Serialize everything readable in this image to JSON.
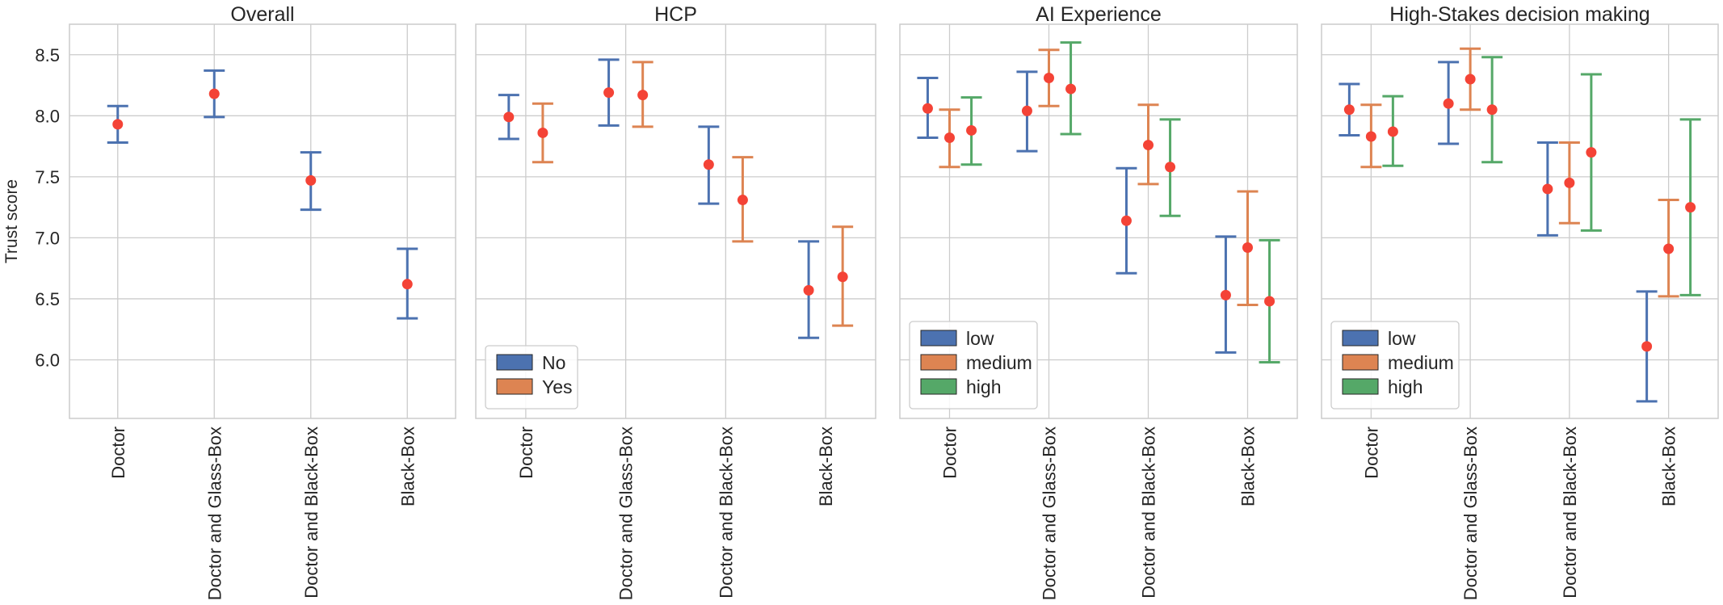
{
  "chart_data": [
    {
      "type": "errorbar",
      "title": "Overall",
      "ylabel": "Trust score",
      "ylim": [
        5.52,
        8.75
      ],
      "yticks": [
        "6.0",
        "6.5",
        "7.0",
        "7.5",
        "8.0",
        "8.5"
      ],
      "ytick_values": [
        6.0,
        6.5,
        7.0,
        7.5,
        8.0,
        8.5
      ],
      "categories": [
        "Doctor",
        "Doctor and Glass-Box",
        "Doctor and Black-Box",
        "Black-Box"
      ],
      "grid": true,
      "legend": null,
      "series": [
        {
          "color": "#4c72b0",
          "mean": [
            7.93,
            8.18,
            7.47,
            6.62
          ],
          "lower": [
            7.78,
            7.99,
            7.23,
            6.34
          ],
          "upper": [
            8.08,
            8.37,
            7.7,
            6.91
          ]
        }
      ]
    },
    {
      "type": "errorbar",
      "title": "HCP",
      "ylabel": "",
      "ylim": [
        5.52,
        8.75
      ],
      "categories": [
        "Doctor",
        "Doctor and Glass-Box",
        "Doctor and Black-Box",
        "Black-Box"
      ],
      "grid": true,
      "legend": "lower-left",
      "series": [
        {
          "name": "No",
          "color": "#4c72b0",
          "mean": [
            7.99,
            8.19,
            7.6,
            6.57
          ],
          "lower": [
            7.81,
            7.92,
            7.28,
            6.18
          ],
          "upper": [
            8.17,
            8.46,
            7.91,
            6.97
          ]
        },
        {
          "name": "Yes",
          "color": "#dd8452",
          "mean": [
            7.86,
            8.17,
            7.31,
            6.68
          ],
          "lower": [
            7.62,
            7.91,
            6.97,
            6.28
          ],
          "upper": [
            8.1,
            8.44,
            7.66,
            7.09
          ]
        }
      ]
    },
    {
      "type": "errorbar",
      "title": "AI Experience",
      "ylabel": "",
      "ylim": [
        5.52,
        8.75
      ],
      "categories": [
        "Doctor",
        "Doctor and Glass-Box",
        "Doctor and Black-Box",
        "Black-Box"
      ],
      "grid": true,
      "legend": "lower-left",
      "series": [
        {
          "name": "low",
          "color": "#4c72b0",
          "mean": [
            8.06,
            8.04,
            7.14,
            6.53
          ],
          "lower": [
            7.82,
            7.71,
            6.71,
            6.06
          ],
          "upper": [
            8.31,
            8.36,
            7.57,
            7.01
          ]
        },
        {
          "name": "medium",
          "color": "#dd8452",
          "mean": [
            7.82,
            8.31,
            7.76,
            6.92
          ],
          "lower": [
            7.58,
            8.08,
            7.44,
            6.45
          ],
          "upper": [
            8.05,
            8.54,
            8.09,
            7.38
          ]
        },
        {
          "name": "high",
          "color": "#55a868",
          "mean": [
            7.88,
            8.22,
            7.58,
            6.48
          ],
          "lower": [
            7.6,
            7.85,
            7.18,
            5.98
          ],
          "upper": [
            8.15,
            8.6,
            7.97,
            6.98
          ]
        }
      ]
    },
    {
      "type": "errorbar",
      "title": "High-Stakes decision making",
      "ylabel": "",
      "ylim": [
        5.52,
        8.75
      ],
      "categories": [
        "Doctor",
        "Doctor and Glass-Box",
        "Doctor and Black-Box",
        "Black-Box"
      ],
      "grid": true,
      "legend": "lower-left",
      "series": [
        {
          "name": "low",
          "color": "#4c72b0",
          "mean": [
            8.05,
            8.1,
            7.4,
            6.11
          ],
          "lower": [
            7.84,
            7.77,
            7.02,
            5.66
          ],
          "upper": [
            8.26,
            8.44,
            7.78,
            6.56
          ]
        },
        {
          "name": "medium",
          "color": "#dd8452",
          "mean": [
            7.83,
            8.3,
            7.45,
            6.91
          ],
          "lower": [
            7.58,
            8.05,
            7.12,
            6.52
          ],
          "upper": [
            8.09,
            8.55,
            7.78,
            7.31
          ]
        },
        {
          "name": "high",
          "color": "#55a868",
          "mean": [
            7.87,
            8.05,
            7.7,
            7.25
          ],
          "lower": [
            7.59,
            7.62,
            7.06,
            6.53
          ],
          "upper": [
            8.16,
            8.48,
            8.34,
            7.97
          ]
        }
      ]
    }
  ],
  "style": {
    "point_color": "#f44336",
    "grid_color": "#cccccc",
    "axis_color": "#cccccc"
  }
}
